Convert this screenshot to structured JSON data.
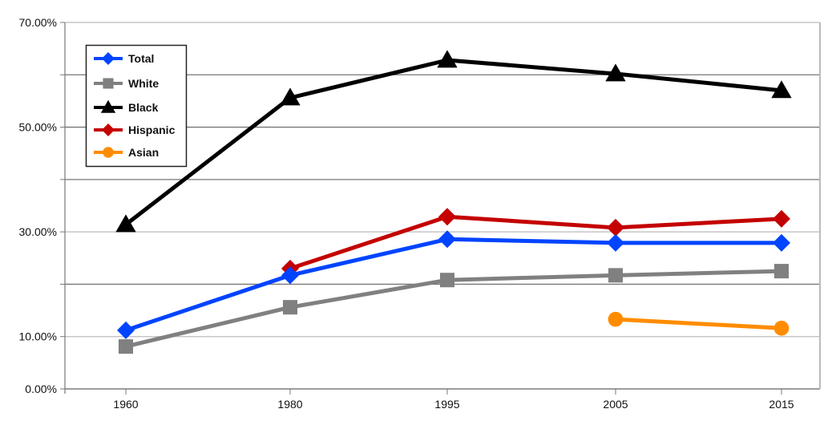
{
  "chart_data": {
    "type": "line",
    "title": "",
    "xlabel": "",
    "ylabel": "",
    "categories": [
      "1960",
      "1980",
      "1995",
      "2005",
      "2015"
    ],
    "ylim": [
      0,
      70
    ],
    "y_ticks": [
      "0.00%",
      "10.00%",
      "30.00%",
      "50.00%",
      "70.00%"
    ],
    "y_tick_values": [
      0,
      10,
      30,
      50,
      70
    ],
    "gridlines_every": 10,
    "grid": true,
    "legend_position": "upper-left inside",
    "series": [
      {
        "name": "Total",
        "color": "#0044ff",
        "marker": "diamond",
        "values": [
          11.2,
          21.7,
          28.6,
          27.9,
          27.9
        ]
      },
      {
        "name": "White",
        "color": "#808080",
        "marker": "square",
        "values": [
          8.1,
          15.6,
          20.8,
          21.7,
          22.5
        ]
      },
      {
        "name": "Black",
        "color": "#000000",
        "marker": "triangle",
        "values": [
          31.4,
          55.6,
          62.8,
          60.2,
          57.0
        ]
      },
      {
        "name": "Hispanic",
        "color": "#c40000",
        "marker": "diamond",
        "values": [
          null,
          23.0,
          32.9,
          30.8,
          32.5
        ]
      },
      {
        "name": "Asian",
        "color": "#ff8c00",
        "marker": "circle",
        "values": [
          null,
          null,
          null,
          13.3,
          11.6
        ]
      }
    ]
  }
}
